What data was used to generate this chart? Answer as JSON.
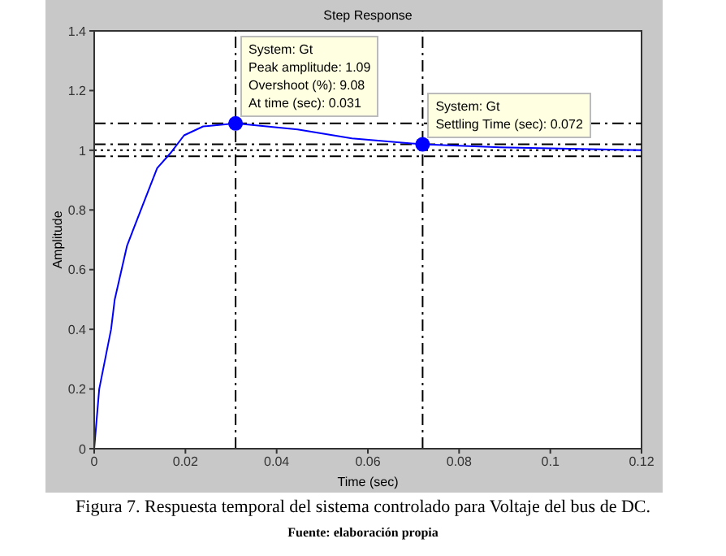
{
  "chart_data": {
    "type": "line",
    "title": "Step Response",
    "xlabel": "Time (sec)",
    "ylabel": "Amplitude",
    "xlim": [
      0,
      0.12
    ],
    "xticks": [
      0,
      0.02,
      0.04,
      0.06,
      0.08,
      0.1,
      0.12
    ],
    "ylim": [
      0,
      1.4
    ],
    "yticks": [
      0,
      0.2,
      0.4,
      0.6,
      0.8,
      1,
      1.2,
      1.4
    ],
    "legend": false,
    "series": [
      {
        "color": "#0000ff",
        "marker": "none",
        "x": [
          0,
          0.0011,
          0.0037,
          0.0045,
          0.006,
          0.0072,
          0.0087,
          0.0138,
          0.0167,
          0.0197,
          0.0239,
          0.031,
          0.0446,
          0.0565,
          0.072,
          0.089,
          0.12
        ],
        "values": [
          0,
          0.2,
          0.4,
          0.5,
          0.6,
          0.68,
          0.74,
          0.94,
          0.99,
          1.05,
          1.08,
          1.09,
          1.07,
          1.04,
          1.02,
          1.01,
          1
        ]
      },
      {
        "type": "scatter",
        "color": "#0000ff",
        "marker": "circle",
        "x": [
          0.031,
          0.072
        ],
        "values": [
          1.09,
          1.02
        ]
      }
    ],
    "ref_lines": [
      {
        "axis": "x",
        "value": 0.031,
        "color": "#000000",
        "line_style": "dashed"
      },
      {
        "axis": "x",
        "value": 0.072,
        "color": "#000000",
        "line_style": "dashed"
      },
      {
        "axis": "y",
        "value": 1.09,
        "color": "#000000",
        "line_style": "dashed"
      },
      {
        "axis": "y",
        "value": 1.02,
        "color": "#000000",
        "line_style": "dashed"
      },
      {
        "axis": "y",
        "value": 1,
        "color": "#000000",
        "line_style": "dotted"
      },
      {
        "axis": "y",
        "value": 0.98,
        "color": "#000000",
        "line_style": "dashed"
      }
    ],
    "annotations": [
      {
        "text": "System: Gt\nPeak amplitude: 1.09\nOvershoot (%): 9.08\nAt time (sec): 0.031",
        "x": 0.031,
        "y": 1.09
      },
      {
        "text": "System: Gt\nSettling Time (sec): 0.072",
        "x": 0.072,
        "y": 1.02
      },
      "Figura 7. Respuesta temporal del sistema controlado para Voltaje del bus de DC.",
      "Fuente: elaboración propia"
    ]
  }
}
